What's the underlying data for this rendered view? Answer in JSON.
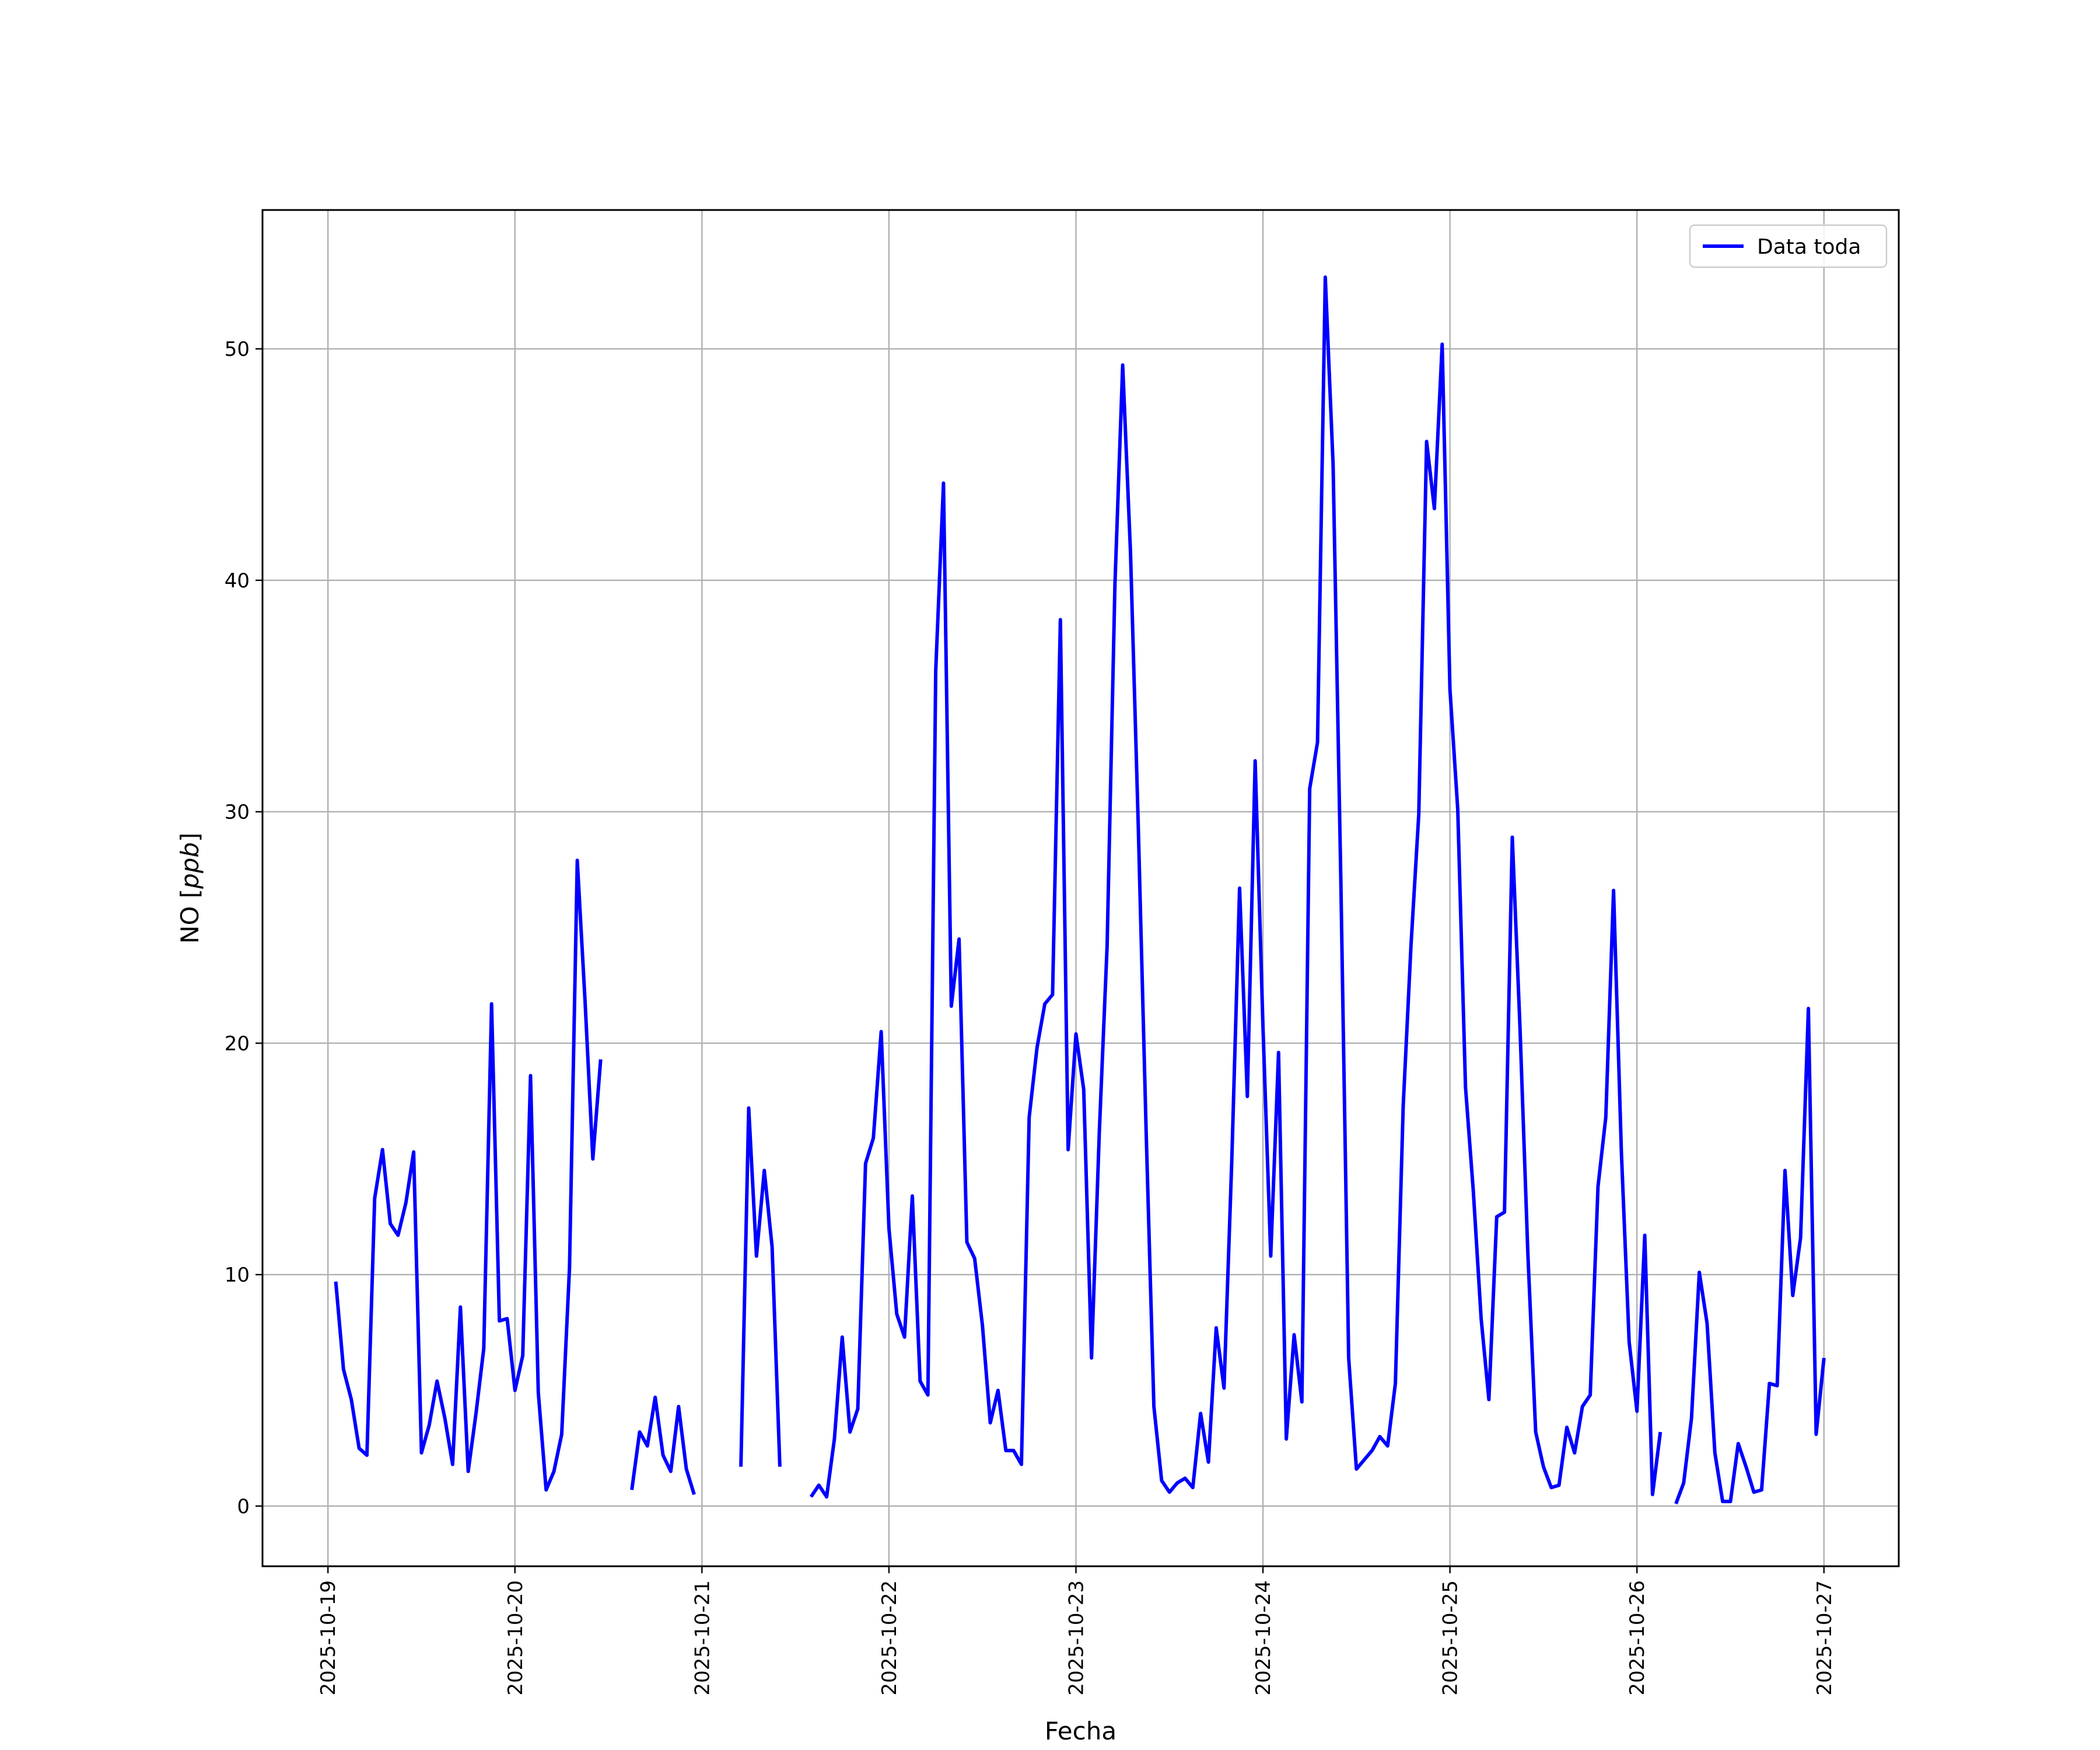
{
  "chart_data": {
    "type": "line",
    "xlabel": "Fecha",
    "ylabel_prefix": "NO [",
    "ylabel_unit": "ppb",
    "ylabel_suffix": "]",
    "ylim": [
      -2.6,
      56
    ],
    "y_ticks": [
      0,
      10,
      20,
      30,
      40,
      50
    ],
    "x_range_days": [
      -0.35,
      8.4
    ],
    "x_ticks": [
      "2025-10-19",
      "2025-10-20",
      "2025-10-21",
      "2025-10-22",
      "2025-10-23",
      "2025-10-24",
      "2025-10-25",
      "2025-10-26",
      "2025-10-27"
    ],
    "grid": true,
    "legend_placement": "top-right",
    "series": [
      {
        "name": "Data toda",
        "color": "#0000ff",
        "points": [
          [
            "2025-10-19 01:00",
            9.7
          ],
          [
            "2025-10-19 02:00",
            5.9
          ],
          [
            "2025-10-19 03:00",
            4.6
          ],
          [
            "2025-10-19 04:00",
            2.5
          ],
          [
            "2025-10-19 05:00",
            2.2
          ],
          [
            "2025-10-19 06:00",
            13.3
          ],
          [
            "2025-10-19 07:00",
            15.4
          ],
          [
            "2025-10-19 08:00",
            12.2
          ],
          [
            "2025-10-19 09:00",
            11.7
          ],
          [
            "2025-10-19 10:00",
            13.1
          ],
          [
            "2025-10-19 11:00",
            15.3
          ],
          [
            "2025-10-19 12:00",
            2.3
          ],
          [
            "2025-10-19 13:00",
            3.5
          ],
          [
            "2025-10-19 14:00",
            5.4
          ],
          [
            "2025-10-19 15:00",
            3.8
          ],
          [
            "2025-10-19 16:00",
            1.8
          ],
          [
            "2025-10-19 17:00",
            8.6
          ],
          [
            "2025-10-19 18:00",
            1.5
          ],
          [
            "2025-10-19 19:00",
            4.0
          ],
          [
            "2025-10-19 20:00",
            6.8
          ],
          [
            "2025-10-19 21:00",
            21.7
          ],
          [
            "2025-10-19 22:00",
            8.0
          ],
          [
            "2025-10-19 23:00",
            8.1
          ],
          [
            "2025-10-20 00:00",
            5.0
          ],
          [
            "2025-10-20 01:00",
            6.5
          ],
          [
            "2025-10-20 02:00",
            18.6
          ],
          [
            "2025-10-20 03:00",
            4.9
          ],
          [
            "2025-10-20 04:00",
            0.7
          ],
          [
            "2025-10-20 05:00",
            1.5
          ],
          [
            "2025-10-20 06:00",
            3.1
          ],
          [
            "2025-10-20 07:00",
            10.3
          ],
          [
            "2025-10-20 08:00",
            27.9
          ],
          [
            "2025-10-20 09:00",
            21.8
          ],
          [
            "2025-10-20 10:00",
            15.0
          ],
          [
            "2025-10-20 11:00",
            19.3
          ],
          null,
          [
            "2025-10-20 15:00",
            0.7
          ],
          [
            "2025-10-20 16:00",
            3.2
          ],
          [
            "2025-10-20 17:00",
            2.6
          ],
          [
            "2025-10-20 18:00",
            4.7
          ],
          [
            "2025-10-20 19:00",
            2.2
          ],
          [
            "2025-10-20 20:00",
            1.5
          ],
          [
            "2025-10-20 21:00",
            4.3
          ],
          [
            "2025-10-20 22:00",
            1.6
          ],
          [
            "2025-10-20 23:00",
            0.5
          ],
          null,
          [
            "2025-10-21 05:00",
            1.7
          ],
          [
            "2025-10-21 06:00",
            17.2
          ],
          [
            "2025-10-21 07:00",
            10.8
          ],
          [
            "2025-10-21 08:00",
            14.5
          ],
          [
            "2025-10-21 09:00",
            11.2
          ],
          [
            "2025-10-21 10:00",
            1.7
          ],
          null,
          [
            "2025-10-21 14:00",
            0.4
          ],
          [
            "2025-10-21 15:00",
            0.9
          ],
          [
            "2025-10-21 16:00",
            0.4
          ],
          [
            "2025-10-21 17:00",
            2.9
          ],
          [
            "2025-10-21 18:00",
            7.3
          ],
          [
            "2025-10-21 19:00",
            3.2
          ],
          [
            "2025-10-21 20:00",
            4.2
          ],
          [
            "2025-10-21 21:00",
            14.8
          ],
          [
            "2025-10-21 22:00",
            15.9
          ],
          [
            "2025-10-21 23:00",
            20.5
          ],
          [
            "2025-10-22 00:00",
            12.0
          ],
          [
            "2025-10-22 01:00",
            8.3
          ],
          [
            "2025-10-22 02:00",
            7.3
          ],
          [
            "2025-10-22 03:00",
            13.4
          ],
          [
            "2025-10-22 04:00",
            5.4
          ],
          [
            "2025-10-22 05:00",
            4.8
          ],
          [
            "2025-10-22 06:00",
            36.1
          ],
          [
            "2025-10-22 07:00",
            44.2
          ],
          [
            "2025-10-22 08:00",
            21.6
          ],
          [
            "2025-10-22 09:00",
            24.5
          ],
          [
            "2025-10-22 10:00",
            11.4
          ],
          [
            "2025-10-22 11:00",
            10.7
          ],
          [
            "2025-10-22 12:00",
            7.8
          ],
          [
            "2025-10-22 13:00",
            3.6
          ],
          [
            "2025-10-22 14:00",
            5.0
          ],
          [
            "2025-10-22 15:00",
            2.4
          ],
          [
            "2025-10-22 16:00",
            2.4
          ],
          [
            "2025-10-22 17:00",
            1.8
          ],
          [
            "2025-10-22 18:00",
            16.8
          ],
          [
            "2025-10-22 19:00",
            19.8
          ],
          [
            "2025-10-22 20:00",
            21.7
          ],
          [
            "2025-10-22 21:00",
            22.1
          ],
          [
            "2025-10-22 22:00",
            38.3
          ],
          [
            "2025-10-22 23:00",
            15.4
          ],
          [
            "2025-10-23 00:00",
            20.4
          ],
          [
            "2025-10-23 01:00",
            18.0
          ],
          [
            "2025-10-23 02:00",
            6.4
          ],
          [
            "2025-10-23 03:00",
            16.2
          ],
          [
            "2025-10-23 04:00",
            24.2
          ],
          [
            "2025-10-23 05:00",
            39.8
          ],
          [
            "2025-10-23 06:00",
            49.3
          ],
          [
            "2025-10-23 07:00",
            41.2
          ],
          [
            "2025-10-23 08:00",
            29.4
          ],
          [
            "2025-10-23 09:00",
            16.3
          ],
          [
            "2025-10-23 10:00",
            4.3
          ],
          [
            "2025-10-23 11:00",
            1.1
          ],
          [
            "2025-10-23 12:00",
            0.6
          ],
          [
            "2025-10-23 13:00",
            1.0
          ],
          [
            "2025-10-23 14:00",
            1.2
          ],
          [
            "2025-10-23 15:00",
            0.8
          ],
          [
            "2025-10-23 16:00",
            4.0
          ],
          [
            "2025-10-23 17:00",
            1.9
          ],
          [
            "2025-10-23 18:00",
            7.7
          ],
          [
            "2025-10-23 19:00",
            5.1
          ],
          [
            "2025-10-23 20:00",
            14.9
          ],
          [
            "2025-10-23 21:00",
            26.7
          ],
          [
            "2025-10-23 22:00",
            17.7
          ],
          [
            "2025-10-23 23:00",
            32.2
          ],
          [
            "2025-10-24 00:00",
            20.7
          ],
          [
            "2025-10-24 01:00",
            10.8
          ],
          [
            "2025-10-24 02:00",
            19.6
          ],
          [
            "2025-10-24 03:00",
            2.9
          ],
          [
            "2025-10-24 04:00",
            7.4
          ],
          [
            "2025-10-24 05:00",
            4.5
          ],
          [
            "2025-10-24 06:00",
            31.0
          ],
          [
            "2025-10-24 07:00",
            33.0
          ],
          [
            "2025-10-24 08:00",
            53.1
          ],
          [
            "2025-10-24 09:00",
            45.0
          ],
          [
            "2025-10-24 10:00",
            27.0
          ],
          [
            "2025-10-24 11:00",
            6.4
          ],
          [
            "2025-10-24 12:00",
            1.6
          ],
          [
            "2025-10-24 13:00",
            2.0
          ],
          [
            "2025-10-24 14:00",
            2.4
          ],
          [
            "2025-10-24 15:00",
            3.0
          ],
          [
            "2025-10-24 16:00",
            2.6
          ],
          [
            "2025-10-24 17:00",
            5.3
          ],
          [
            "2025-10-24 18:00",
            17.3
          ],
          [
            "2025-10-24 19:00",
            24.2
          ],
          [
            "2025-10-24 20:00",
            29.9
          ],
          [
            "2025-10-24 21:00",
            46.0
          ],
          [
            "2025-10-24 22:00",
            43.1
          ],
          [
            "2025-10-24 23:00",
            50.2
          ],
          [
            "2025-10-25 00:00",
            35.3
          ],
          [
            "2025-10-25 01:00",
            30.1
          ],
          [
            "2025-10-25 02:00",
            18.1
          ],
          [
            "2025-10-25 03:00",
            13.6
          ],
          [
            "2025-10-25 04:00",
            8.1
          ],
          [
            "2025-10-25 05:00",
            4.6
          ],
          [
            "2025-10-25 06:00",
            12.5
          ],
          [
            "2025-10-25 07:00",
            12.7
          ],
          [
            "2025-10-25 08:00",
            28.9
          ],
          [
            "2025-10-25 09:00",
            20.6
          ],
          [
            "2025-10-25 10:00",
            10.9
          ],
          [
            "2025-10-25 11:00",
            3.2
          ],
          [
            "2025-10-25 12:00",
            1.7
          ],
          [
            "2025-10-25 13:00",
            0.8
          ],
          [
            "2025-10-25 14:00",
            0.9
          ],
          [
            "2025-10-25 15:00",
            3.4
          ],
          [
            "2025-10-25 16:00",
            2.3
          ],
          [
            "2025-10-25 17:00",
            4.3
          ],
          [
            "2025-10-25 18:00",
            4.8
          ],
          [
            "2025-10-25 19:00",
            13.8
          ],
          [
            "2025-10-25 20:00",
            16.8
          ],
          [
            "2025-10-25 21:00",
            26.6
          ],
          [
            "2025-10-25 22:00",
            15.3
          ],
          [
            "2025-10-25 23:00",
            7.1
          ],
          [
            "2025-10-26 00:00",
            4.1
          ],
          [
            "2025-10-26 01:00",
            11.7
          ],
          [
            "2025-10-26 02:00",
            0.5
          ],
          [
            "2025-10-26 03:00",
            3.2
          ],
          null,
          [
            "2025-10-26 05:00",
            0.1
          ],
          [
            "2025-10-26 06:00",
            1.0
          ],
          [
            "2025-10-26 07:00",
            3.8
          ],
          [
            "2025-10-26 08:00",
            10.1
          ],
          [
            "2025-10-26 09:00",
            7.9
          ],
          [
            "2025-10-26 10:00",
            2.3
          ],
          [
            "2025-10-26 11:00",
            0.2
          ],
          [
            "2025-10-26 12:00",
            0.2
          ],
          [
            "2025-10-26 13:00",
            2.7
          ],
          [
            "2025-10-26 14:00",
            1.7
          ],
          [
            "2025-10-26 15:00",
            0.6
          ],
          [
            "2025-10-26 16:00",
            0.7
          ],
          [
            "2025-10-26 17:00",
            5.3
          ],
          [
            "2025-10-26 18:00",
            5.2
          ],
          [
            "2025-10-26 19:00",
            14.5
          ],
          [
            "2025-10-26 20:00",
            9.1
          ],
          [
            "2025-10-26 21:00",
            11.6
          ],
          [
            "2025-10-26 22:00",
            21.5
          ],
          [
            "2025-10-26 23:00",
            3.1
          ],
          [
            "2025-10-27 00:00",
            6.4
          ]
        ]
      }
    ]
  }
}
